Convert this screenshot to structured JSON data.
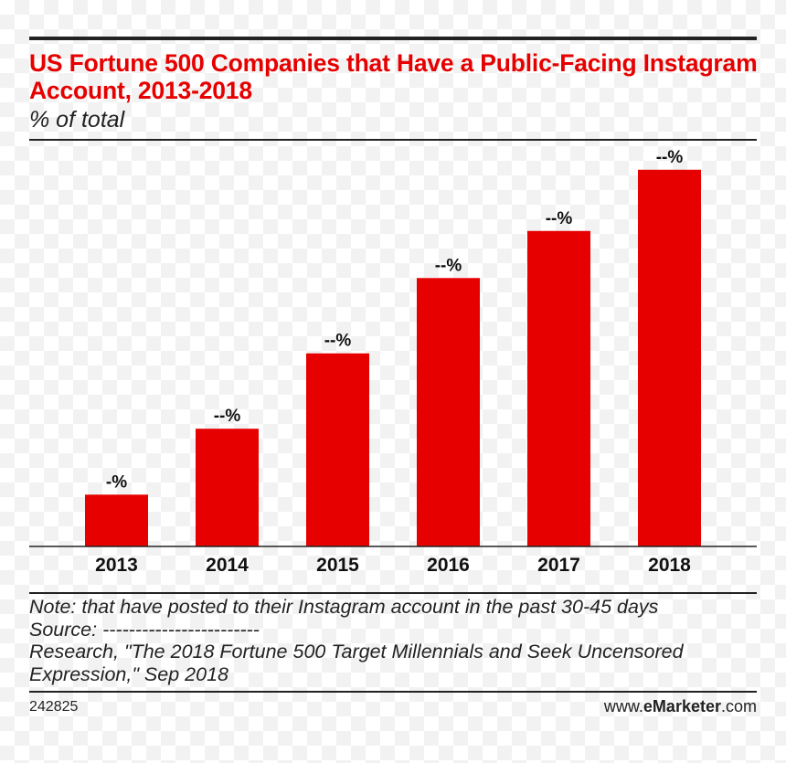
{
  "chart_data": {
    "type": "bar",
    "title": "US Fortune 500 Companies that Have a Public-Facing Instagram Account, 2013-2018",
    "subtitle": "% of total",
    "categories": [
      "2013",
      "2014",
      "2015",
      "2016",
      "2017",
      "2018"
    ],
    "values": [
      11,
      25,
      41,
      57,
      67,
      80
    ],
    "data_labels": [
      "-%",
      "--%",
      "--%",
      "--%",
      "--%",
      "--%"
    ],
    "ylim": [
      0,
      85
    ],
    "xlabel": "",
    "ylabel": "",
    "grid": false,
    "bar_color": "#e60000"
  },
  "footer": {
    "note": "Note: that have posted to their Instagram account in the past 30-45 days",
    "source_label": "Source:",
    "source_blank": "------------------------",
    "source_text": "Research, \"The 2018 Fortune 500 Target Millennials and Seek Uncensored Expression,\" Sep 2018",
    "chart_id": "242825",
    "brand_prefix": "www.",
    "brand_name": "eMarketer",
    "brand_suffix": ".com"
  },
  "colors": {
    "accent": "#e60000",
    "rule": "#222222"
  }
}
